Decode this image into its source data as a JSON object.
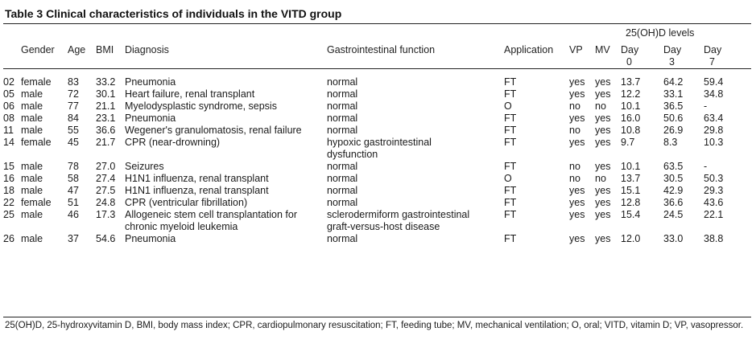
{
  "title": "Table 3 Clinical characteristics of individuals in the VITD group",
  "header": {
    "group_label": "25(OH)D levels",
    "columns": [
      "",
      "Gender",
      "Age",
      "BMI",
      "Diagnosis",
      "Gastrointestinal function",
      "Application",
      "VP",
      "MV",
      "Day 0",
      "Day 3",
      "Day 7"
    ],
    "day_parts": [
      [
        "Day",
        "0"
      ],
      [
        "Day",
        "3"
      ],
      [
        "Day",
        "7"
      ]
    ]
  },
  "rows": [
    {
      "id": "02",
      "gender": "female",
      "age": "83",
      "bmi": "33.2",
      "diagnosis": [
        "Pneumonia"
      ],
      "gi": [
        "normal"
      ],
      "application": "FT",
      "vp": "yes",
      "mv": "yes",
      "d0": "13.7",
      "d3": "64.2",
      "d7": "59.4"
    },
    {
      "id": "05",
      "gender": "male",
      "age": "72",
      "bmi": "30.1",
      "diagnosis": [
        "Heart failure, renal transplant"
      ],
      "gi": [
        "normal"
      ],
      "application": "FT",
      "vp": "yes",
      "mv": "yes",
      "d0": "12.2",
      "d3": "33.1",
      "d7": "34.8"
    },
    {
      "id": "06",
      "gender": "male",
      "age": "77",
      "bmi": "21.1",
      "diagnosis": [
        "Myelodysplastic syndrome, sepsis"
      ],
      "gi": [
        "normal"
      ],
      "application": "O",
      "vp": "no",
      "mv": "no",
      "d0": "10.1",
      "d3": "36.5",
      "d7": "-"
    },
    {
      "id": "08",
      "gender": "male",
      "age": "84",
      "bmi": "23.1",
      "diagnosis": [
        "Pneumonia"
      ],
      "gi": [
        "normal"
      ],
      "application": "FT",
      "vp": "yes",
      "mv": "yes",
      "d0": "16.0",
      "d3": "50.6",
      "d7": "63.4"
    },
    {
      "id": "11",
      "gender": "male",
      "age": "55",
      "bmi": "36.6",
      "diagnosis": [
        "Wegener's granulomatosis, renal failure"
      ],
      "gi": [
        "normal"
      ],
      "application": "FT",
      "vp": "no",
      "mv": "yes",
      "d0": "10.8",
      "d3": "26.9",
      "d7": "29.8"
    },
    {
      "id": "14",
      "gender": "female",
      "age": "45",
      "bmi": "21.7",
      "diagnosis": [
        "CPR (near-drowning)"
      ],
      "gi": [
        "hypoxic gastrointestinal",
        "dysfunction"
      ],
      "application": "FT",
      "vp": "yes",
      "mv": "yes",
      "d0": "9.7",
      "d3": "8.3",
      "d7": "10.3"
    },
    {
      "id": "15",
      "gender": "male",
      "age": "78",
      "bmi": "27.0",
      "diagnosis": [
        "Seizures"
      ],
      "gi": [
        "normal"
      ],
      "application": "FT",
      "vp": "no",
      "mv": "yes",
      "d0": "10.1",
      "d3": "63.5",
      "d7": "-"
    },
    {
      "id": "16",
      "gender": "male",
      "age": "58",
      "bmi": "27.4",
      "diagnosis": [
        "H1N1 influenza, renal transplant"
      ],
      "gi": [
        "normal"
      ],
      "application": "O",
      "vp": "no",
      "mv": "no",
      "d0": "13.7",
      "d3": "30.5",
      "d7": "50.3"
    },
    {
      "id": "18",
      "gender": "male",
      "age": "47",
      "bmi": "27.5",
      "diagnosis": [
        "H1N1 influenza, renal transplant"
      ],
      "gi": [
        "normal"
      ],
      "application": "FT",
      "vp": "yes",
      "mv": "yes",
      "d0": "15.1",
      "d3": "42.9",
      "d7": "29.3"
    },
    {
      "id": "22",
      "gender": "female",
      "age": "51",
      "bmi": "24.8",
      "diagnosis": [
        "CPR (ventricular fibrillation)"
      ],
      "gi": [
        "normal"
      ],
      "application": "FT",
      "vp": "yes",
      "mv": "yes",
      "d0": "12.8",
      "d3": "36.6",
      "d7": "43.6"
    },
    {
      "id": "25",
      "gender": "male",
      "age": "46",
      "bmi": "17.3",
      "diagnosis": [
        "Allogeneic stem cell transplantation for",
        "chronic myeloid leukemia"
      ],
      "gi": [
        "sclerodermiform gastrointestinal",
        "graft-versus-host disease"
      ],
      "application": "FT",
      "vp": "yes",
      "mv": "yes",
      "d0": "15.4",
      "d3": "24.5",
      "d7": "22.1"
    },
    {
      "id": "26",
      "gender": "male",
      "age": "37",
      "bmi": "54.6",
      "diagnosis": [
        "Pneumonia"
      ],
      "gi": [
        "normal"
      ],
      "application": "FT",
      "vp": "yes",
      "mv": "yes",
      "d0": "12.0",
      "d3": "33.0",
      "d7": "38.8"
    }
  ],
  "footnote": "25(OH)D, 25-hydroxyvitamin D, BMI, body mass index; CPR, cardiopulmonary resuscitation; FT, feeding tube; MV, mechanical ventilation; O, oral; VITD, vitamin D; VP, vasopressor."
}
